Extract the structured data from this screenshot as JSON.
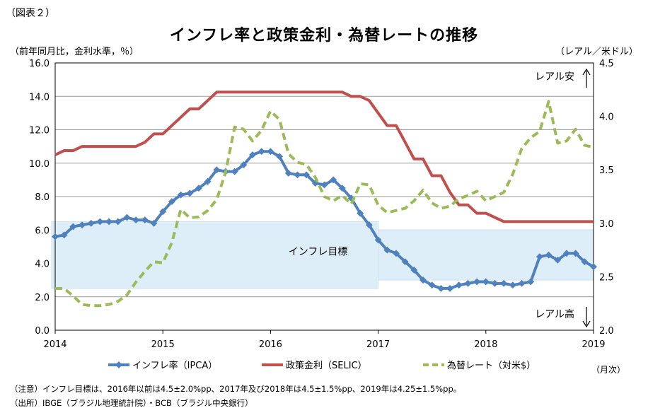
{
  "figure_label": "（図表２）",
  "title": "インフレ率と政策金利・為替レートの推移",
  "left_axis_unit": "（前年同月比，金利水準，％）",
  "right_axis_unit": "（レアル／米ドル）",
  "period_unit": "（月次）",
  "note": "（注意）インフレ目標は、2016年以前は4.5±2.0%pp、2017年及び2018年は4.5±1.5%pp、2019年は4.25±1.5%pp。",
  "source": "（出所）IBGE（ブラジル地理統計院）・BCB（ブラジル中央銀行）",
  "chart_data": {
    "type": "line",
    "title": "インフレ率と政策金利・為替レートの推移",
    "x": {
      "label": "",
      "start": "2014-01",
      "end": "2019-01",
      "ticks": [
        "2014",
        "2015",
        "2016",
        "2017",
        "2018",
        "2019"
      ]
    },
    "y_left": {
      "label": "前年同月比，金利水準，％",
      "range": [
        0,
        16
      ],
      "ticks": [
        "0.0",
        "2.0",
        "4.0",
        "6.0",
        "8.0",
        "10.0",
        "12.0",
        "14.0",
        "16.0"
      ]
    },
    "y_right": {
      "label": "レアル／米ドル",
      "range": [
        2.0,
        4.5
      ],
      "ticks": [
        "2.0",
        "2.5",
        "3.0",
        "3.5",
        "4.0",
        "4.5"
      ]
    },
    "target_bands": [
      {
        "label": "インフレ目標",
        "from": "2014-01",
        "to": "2016-12",
        "low": 2.5,
        "high": 6.5
      },
      {
        "label": "インフレ目標",
        "from": "2017-01",
        "to": "2018-12",
        "low": 3.0,
        "high": 6.0
      },
      {
        "label": "インフレ目標",
        "from": "2019-01",
        "to": "2019-01",
        "low": 2.75,
        "high": 5.75
      }
    ],
    "target_label": "インフレ目標",
    "annotations": {
      "depreciation": "レアル安",
      "appreciation": "レアル高"
    },
    "grid": true,
    "legend_position": "bottom",
    "series": [
      {
        "name": "インフレ率（IPCA）",
        "axis": "left",
        "style": "solid-marker",
        "color": "#4f81bd",
        "values": [
          5.6,
          5.7,
          6.2,
          6.3,
          6.4,
          6.5,
          6.5,
          6.5,
          6.75,
          6.6,
          6.6,
          6.4,
          7.1,
          7.7,
          8.1,
          8.2,
          8.5,
          8.9,
          9.6,
          9.5,
          9.5,
          9.9,
          10.5,
          10.7,
          10.7,
          10.4,
          9.4,
          9.3,
          9.3,
          8.8,
          8.7,
          9.0,
          8.5,
          7.9,
          7.0,
          6.3,
          5.4,
          4.8,
          4.6,
          4.1,
          3.6,
          3.0,
          2.7,
          2.5,
          2.5,
          2.7,
          2.8,
          2.9,
          2.9,
          2.8,
          2.8,
          2.7,
          2.8,
          2.9,
          4.4,
          4.5,
          4.2,
          4.6,
          4.6,
          4.1,
          3.8
        ]
      },
      {
        "name": "政策金利（SELIC）",
        "axis": "left",
        "style": "solid",
        "color": "#c0504d",
        "values": [
          10.5,
          10.75,
          10.75,
          11.0,
          11.0,
          11.0,
          11.0,
          11.0,
          11.0,
          11.0,
          11.25,
          11.75,
          11.75,
          12.25,
          12.75,
          13.25,
          13.25,
          13.75,
          14.25,
          14.25,
          14.25,
          14.25,
          14.25,
          14.25,
          14.25,
          14.25,
          14.25,
          14.25,
          14.25,
          14.25,
          14.25,
          14.25,
          14.25,
          14.0,
          14.0,
          13.75,
          13.0,
          12.25,
          12.25,
          11.25,
          10.25,
          10.25,
          9.25,
          9.25,
          8.25,
          7.5,
          7.5,
          7.0,
          7.0,
          6.75,
          6.5,
          6.5,
          6.5,
          6.5,
          6.5,
          6.5,
          6.5,
          6.5,
          6.5,
          6.5,
          6.5
        ]
      },
      {
        "name": "為替レート（対米$）",
        "axis": "right",
        "style": "dashed",
        "color": "#9bbb59",
        "values": [
          2.39,
          2.39,
          2.32,
          2.24,
          2.23,
          2.23,
          2.24,
          2.27,
          2.33,
          2.45,
          2.55,
          2.64,
          2.63,
          2.82,
          3.13,
          3.05,
          3.06,
          3.12,
          3.22,
          3.48,
          3.9,
          3.88,
          3.77,
          3.87,
          4.05,
          3.97,
          3.65,
          3.57,
          3.55,
          3.43,
          3.25,
          3.21,
          3.26,
          3.18,
          3.37,
          3.36,
          3.17,
          3.1,
          3.12,
          3.14,
          3.21,
          3.31,
          3.19,
          3.14,
          3.16,
          3.23,
          3.26,
          3.3,
          3.21,
          3.25,
          3.29,
          3.46,
          3.7,
          3.8,
          3.86,
          4.14,
          3.75,
          3.77,
          3.88,
          3.73,
          3.71
        ]
      }
    ]
  }
}
